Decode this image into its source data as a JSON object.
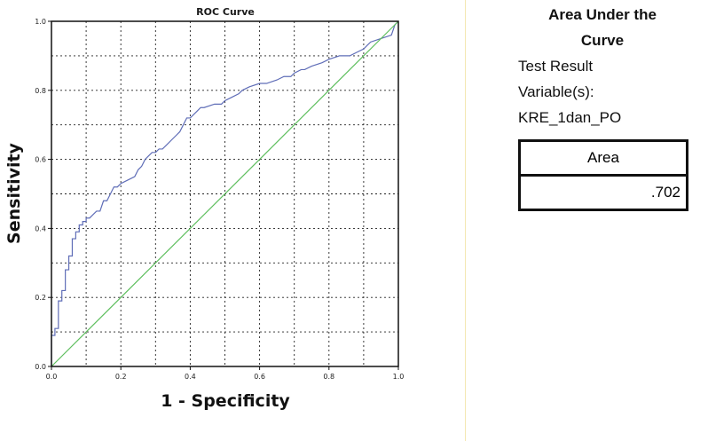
{
  "chart_data": {
    "type": "line",
    "title": "ROC Curve",
    "xlabel": "1 - Specificity",
    "ylabel": "Sensitivity",
    "xlim": [
      0,
      1
    ],
    "ylim": [
      0,
      1
    ],
    "xticks": [
      "0.0",
      "0.2",
      "0.4",
      "0.6",
      "0.8",
      "1.0"
    ],
    "yticks": [
      "0.0",
      "0.2",
      "0.4",
      "0.6",
      "0.8",
      "1.0"
    ],
    "grid": true,
    "colors": {
      "roc": "#5f6db7",
      "reference": "#5fbf5f"
    },
    "series": [
      {
        "key": "roc",
        "x": [
          0,
          0,
          0.01,
          0.01,
          0.02,
          0.02,
          0.03,
          0.03,
          0.04,
          0.04,
          0.05,
          0.05,
          0.06,
          0.06,
          0.07,
          0.07,
          0.08,
          0.08,
          0.09,
          0.09,
          0.1,
          0.1,
          0.11,
          0.12,
          0.13,
          0.14,
          0.15,
          0.16,
          0.17,
          0.18,
          0.19,
          0.2,
          0.22,
          0.24,
          0.25,
          0.26,
          0.27,
          0.28,
          0.29,
          0.3,
          0.31,
          0.32,
          0.33,
          0.35,
          0.36,
          0.37,
          0.38,
          0.39,
          0.4,
          0.42,
          0.43,
          0.44,
          0.47,
          0.49,
          0.5,
          0.52,
          0.54,
          0.55,
          0.57,
          0.6,
          0.62,
          0.65,
          0.67,
          0.69,
          0.7,
          0.72,
          0.73,
          0.75,
          0.78,
          0.8,
          0.83,
          0.86,
          0.88,
          0.9,
          0.91,
          0.92,
          0.95,
          0.98,
          0.99,
          1
        ],
        "y": [
          0,
          0.09,
          0.09,
          0.11,
          0.11,
          0.19,
          0.19,
          0.22,
          0.22,
          0.28,
          0.28,
          0.32,
          0.32,
          0.37,
          0.37,
          0.39,
          0.39,
          0.41,
          0.41,
          0.42,
          0.42,
          0.43,
          0.43,
          0.44,
          0.45,
          0.45,
          0.48,
          0.48,
          0.5,
          0.52,
          0.52,
          0.53,
          0.54,
          0.55,
          0.57,
          0.58,
          0.6,
          0.61,
          0.62,
          0.62,
          0.63,
          0.63,
          0.64,
          0.66,
          0.67,
          0.68,
          0.7,
          0.72,
          0.72,
          0.74,
          0.75,
          0.75,
          0.76,
          0.76,
          0.77,
          0.78,
          0.79,
          0.8,
          0.81,
          0.82,
          0.82,
          0.83,
          0.84,
          0.84,
          0.85,
          0.86,
          0.86,
          0.87,
          0.88,
          0.89,
          0.9,
          0.9,
          0.91,
          0.92,
          0.93,
          0.94,
          0.95,
          0.96,
          0.99,
          1
        ]
      },
      {
        "key": "reference",
        "x": [
          0,
          1
        ],
        "y": [
          0,
          1
        ]
      }
    ]
  },
  "auc": {
    "title_line1": "Area Under the",
    "title_line2": "Curve",
    "variable_line1": "Test Result",
    "variable_line2": "Variable(s):",
    "variable_line3": "KRE_1dan_PO",
    "column_header": "Area",
    "value": ".702"
  }
}
